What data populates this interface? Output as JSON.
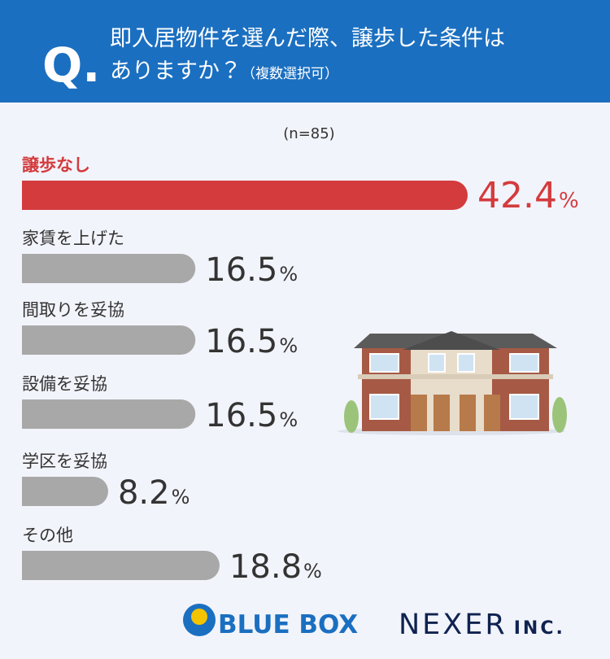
{
  "header": {
    "mark": "Q.",
    "lines": [
      "即入居物件を選んだ際、譲歩した条件は",
      "ありますか？"
    ],
    "note": "（複数選択可）"
  },
  "chart_data": {
    "type": "bar",
    "orientation": "horizontal",
    "sample": "(n=85)",
    "categories": [
      "譲歩なし",
      "家賃を上げた",
      "間取りを妥協",
      "設備を妥協",
      "学区を妥協",
      "その他"
    ],
    "values": [
      42.4,
      16.5,
      16.5,
      16.5,
      8.2,
      18.8
    ],
    "unit": "%",
    "colors": [
      "#d43b3d",
      "#a8a8a8",
      "#a8a8a8",
      "#a8a8a8",
      "#a8a8a8",
      "#a8a8a8"
    ]
  },
  "footer": {
    "brand1": "BLUE BOX",
    "brand2": "NEXER",
    "brand2_suffix": "INC."
  }
}
